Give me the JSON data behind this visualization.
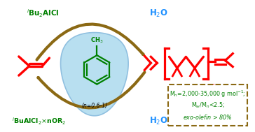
{
  "bg_color": "#ffffff",
  "drop_color": "#b8dff0",
  "drop_edge_color": "#90c0e0",
  "arrow_color": "#8B6914",
  "red_color": "#ff0000",
  "green_color": "#008000",
  "blue_color": "#1e90ff",
  "figsize": [
    3.64,
    1.89
  ],
  "dpi": 100
}
